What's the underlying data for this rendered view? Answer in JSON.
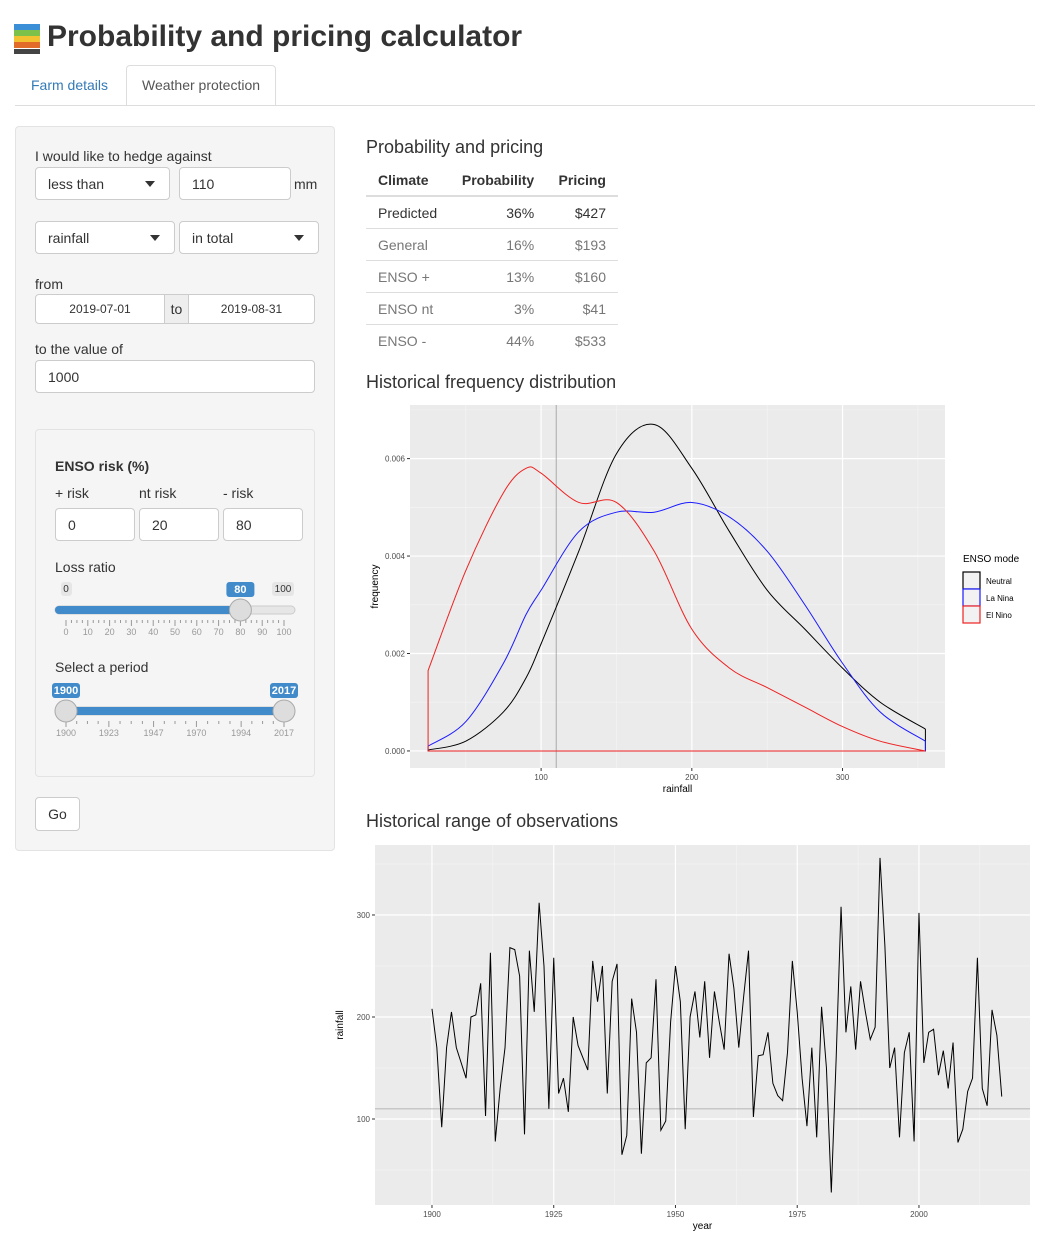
{
  "header": {
    "title": "Probability and pricing calculator"
  },
  "tabs": [
    "Farm details",
    "Weather protection"
  ],
  "form": {
    "hedge_label": "I would like to hedge against",
    "comparison": "less than",
    "threshold": 110,
    "unit": "mm",
    "variable": "rainfall",
    "aggregation": "in total",
    "from_label": "from",
    "date_start": "2019-07-01",
    "date_sep": "to",
    "date_end": "2019-08-31",
    "value_label": "to the value of",
    "value": 1000,
    "enso": {
      "label": "ENSO risk (%)",
      "fields": [
        {
          "label": "+ risk",
          "value": 0
        },
        {
          "label": "nt risk",
          "value": 20
        },
        {
          "label": "- risk",
          "value": 80
        }
      ]
    },
    "loss_ratio": {
      "label": "Loss ratio",
      "min": 0,
      "max": 100,
      "value": 80,
      "ticks": [
        0,
        10,
        20,
        30,
        40,
        50,
        60,
        70,
        80,
        90,
        100
      ]
    },
    "period": {
      "label": "Select a period",
      "from": 1900,
      "to": 2017,
      "ticks": [
        1900,
        1923,
        1947,
        1970,
        1994,
        2017
      ]
    },
    "button": "Go"
  },
  "table": {
    "title": "Probability and pricing",
    "columns": [
      "Climate",
      "Probability",
      "Pricing"
    ],
    "rows": [
      [
        "Predicted",
        "36%",
        "$427"
      ],
      [
        "General",
        "16%",
        "$193"
      ],
      [
        "ENSO +",
        "13%",
        "$160"
      ],
      [
        "ENSO nt",
        "3%",
        "$41"
      ],
      [
        "ENSO -",
        "44%",
        "$533"
      ]
    ]
  },
  "chart_data": [
    {
      "type": "line",
      "title": "Historical frequency distribution",
      "x_label": "rainfall",
      "y_label": "frequency",
      "legend_title": "ENSO mode",
      "legend": "right",
      "grid": true,
      "x": [
        25,
        50,
        75,
        90,
        100,
        125,
        150,
        175,
        200,
        225,
        250,
        275,
        300,
        325,
        355
      ],
      "series": [
        {
          "name": "Neutral",
          "color": "#000000",
          "values": [
            2e-05,
            0.0002,
            0.0008,
            0.0015,
            0.0022,
            0.0041,
            0.0061,
            0.0067,
            0.0058,
            0.0045,
            0.0033,
            0.0025,
            0.0017,
            0.001,
            0.00045
          ]
        },
        {
          "name": "La Nina",
          "color": "#1a1aff",
          "values": [
            0.0001,
            0.0006,
            0.0018,
            0.0028,
            0.0033,
            0.0045,
            0.0049,
            0.0049,
            0.0051,
            0.0048,
            0.0041,
            0.003,
            0.0018,
            0.0008,
            0.0002
          ]
        },
        {
          "name": "El Nino",
          "color": "#ee2222",
          "values": [
            0.00165,
            0.0037,
            0.0053,
            0.0058,
            0.0057,
            0.0051,
            0.0051,
            0.0041,
            0.0025,
            0.0017,
            0.0013,
            0.0009,
            0.0005,
            0.0002,
            0
          ]
        }
      ],
      "xlim": [
        13,
        368
      ],
      "ylim": [
        -0.00035,
        0.0071
      ],
      "xticks": [
        100,
        200,
        300
      ],
      "yticks": [
        {
          "value": 0,
          "label": "0.000"
        },
        {
          "value": 0.002,
          "label": "0.002"
        },
        {
          "value": 0.004,
          "label": "0.004"
        },
        {
          "value": 0.006,
          "label": "0.006"
        }
      ]
    },
    {
      "type": "line",
      "title": "Historical range of observations",
      "x_label": "year",
      "y_label": "rainfall",
      "grid": true,
      "x": [
        1900,
        1901,
        1902,
        1903,
        1904,
        1905,
        1906,
        1907,
        1908,
        1909,
        1910,
        1911,
        1912,
        1913,
        1914,
        1915,
        1916,
        1917,
        1918,
        1919,
        1920,
        1921,
        1922,
        1923,
        1924,
        1925,
        1926,
        1927,
        1928,
        1929,
        1930,
        1931,
        1932,
        1933,
        1934,
        1935,
        1936,
        1937,
        1938,
        1939,
        1940,
        1941,
        1942,
        1943,
        1944,
        1945,
        1946,
        1947,
        1948,
        1949,
        1950,
        1951,
        1952,
        1953,
        1954,
        1955,
        1956,
        1957,
        1958,
        1959,
        1960,
        1961,
        1962,
        1963,
        1964,
        1965,
        1966,
        1967,
        1968,
        1969,
        1970,
        1971,
        1972,
        1973,
        1974,
        1975,
        1976,
        1977,
        1978,
        1979,
        1980,
        1981,
        1982,
        1983,
        1984,
        1985,
        1986,
        1987,
        1988,
        1989,
        1990,
        1991,
        1992,
        1993,
        1994,
        1995,
        1996,
        1997,
        1998,
        1999,
        2000,
        2001,
        2002,
        2003,
        2004,
        2005,
        2006,
        2007,
        2008,
        2009,
        2010,
        2011,
        2012,
        2013,
        2014,
        2015,
        2016,
        2017
      ],
      "series": [
        {
          "name": "rainfall",
          "color": "#000000",
          "values": [
            208,
            170,
            92,
            170,
            205,
            170,
            155,
            140,
            200,
            202,
            233,
            103,
            263,
            78,
            130,
            170,
            268,
            266,
            240,
            85,
            265,
            205,
            312,
            250,
            110,
            258,
            125,
            140,
            107,
            200,
            172,
            160,
            148,
            255,
            215,
            250,
            125,
            235,
            252,
            65,
            84,
            218,
            185,
            66,
            155,
            160,
            237,
            89,
            98,
            195,
            250,
            215,
            90,
            200,
            225,
            180,
            235,
            160,
            225,
            195,
            168,
            262,
            228,
            170,
            220,
            265,
            102,
            162,
            163,
            185,
            135,
            123,
            118,
            165,
            255,
            205,
            140,
            93,
            170,
            82,
            210,
            150,
            28,
            160,
            308,
            185,
            230,
            168,
            235,
            205,
            178,
            190,
            356,
            270,
            150,
            170,
            82,
            165,
            185,
            78,
            302,
            155,
            185,
            188,
            143,
            167,
            130,
            175,
            77,
            90,
            127,
            140,
            258,
            130,
            113,
            207,
            182,
            122
          ]
        }
      ],
      "xlim": [
        1888.3,
        2022.8
      ],
      "ylim": [
        15.7,
        368.6
      ],
      "xticks": [
        1900,
        1925,
        1950,
        1975,
        2000
      ],
      "yticks": [
        100,
        200,
        300
      ]
    }
  ]
}
